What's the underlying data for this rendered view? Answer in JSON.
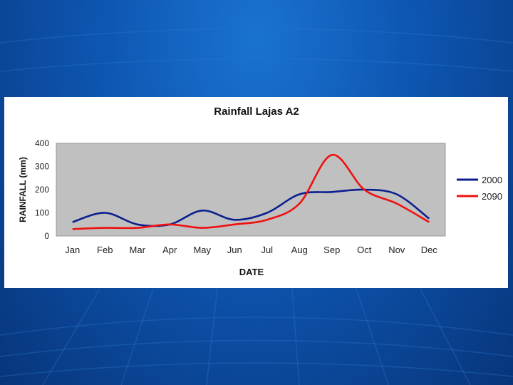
{
  "chart_data": {
    "type": "line",
    "title": "Rainfall Lajas A2",
    "xlabel": "DATE",
    "ylabel": "RAINFALL (mm)",
    "categories": [
      "Jan",
      "Feb",
      "Mar",
      "Apr",
      "May",
      "Jun",
      "Jul",
      "Aug",
      "Sep",
      "Oct",
      "Nov",
      "Dec"
    ],
    "ylim": [
      0,
      400
    ],
    "yticks": [
      "0",
      "100",
      "200",
      "300",
      "400"
    ],
    "series": [
      {
        "name": "2000",
        "color": "#0a1f8f",
        "values": [
          60,
          100,
          50,
          50,
          110,
          70,
          100,
          180,
          190,
          200,
          180,
          75
        ]
      },
      {
        "name": "2090",
        "color": "#ee1111",
        "values": [
          30,
          35,
          35,
          50,
          35,
          50,
          70,
          140,
          350,
          200,
          140,
          60
        ]
      }
    ],
    "grid": false,
    "plot_background": "#c0c0c0",
    "legend_position": "right"
  },
  "colors": {
    "slide_background": "#0d55b0",
    "panel_background": "#ffffff"
  }
}
